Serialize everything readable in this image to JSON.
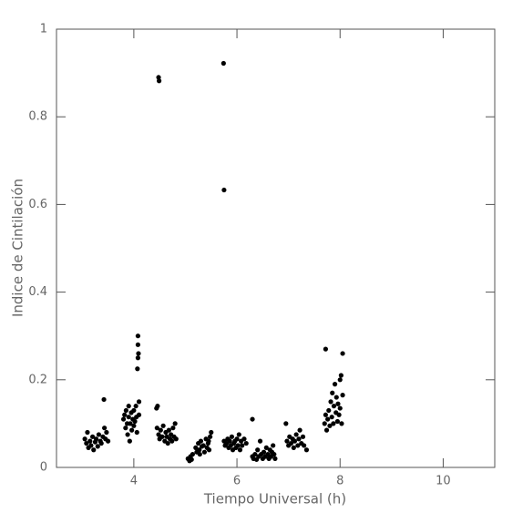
{
  "chart_data": {
    "type": "scatter",
    "x_label": "Tiempo Universal (h)",
    "y_label": "Indice de Cintilación",
    "color": "#000000",
    "xlim": [
      2.5,
      11
    ],
    "xticks": [
      4,
      6,
      8,
      10
    ],
    "ylim": [
      0,
      1
    ],
    "yticks": [
      0,
      0.2,
      0.4,
      0.6,
      0.8,
      1
    ],
    "x": [
      3.05,
      3.08,
      3.1,
      3.12,
      3.15,
      3.17,
      3.2,
      3.22,
      3.25,
      3.27,
      3.3,
      3.32,
      3.35,
      3.37,
      3.4,
      3.42,
      3.43,
      3.45,
      3.47,
      3.5,
      3.8,
      3.82,
      3.84,
      3.85,
      3.87,
      3.88,
      3.9,
      3.9,
      3.92,
      3.93,
      3.95,
      3.96,
      3.98,
      4.0,
      4.0,
      4.02,
      4.04,
      4.05,
      4.06,
      4.08,
      4.08,
      4.09,
      4.08,
      4.07,
      4.1,
      4.1,
      4.44,
      4.46,
      4.48,
      4.49,
      4.45,
      4.48,
      4.5,
      4.52,
      4.55,
      4.57,
      4.6,
      4.62,
      4.64,
      4.66,
      4.68,
      4.7,
      4.72,
      4.74,
      4.76,
      4.78,
      4.8,
      4.82,
      5.05,
      5.08,
      5.1,
      5.12,
      5.14,
      5.2,
      5.22,
      5.25,
      5.27,
      5.3,
      5.32,
      5.35,
      5.37,
      5.4,
      5.42,
      5.44,
      5.46,
      5.48,
      5.5,
      5.45,
      5.28,
      5.74,
      5.75,
      5.75,
      5.77,
      5.8,
      5.82,
      5.84,
      5.86,
      5.88,
      5.9,
      5.92,
      5.94,
      5.96,
      5.98,
      6.0,
      6.02,
      6.04,
      6.06,
      6.08,
      6.1,
      6.14,
      6.18,
      6.3,
      6.3,
      6.32,
      6.35,
      6.38,
      6.4,
      6.42,
      6.45,
      6.47,
      6.5,
      6.52,
      6.55,
      6.57,
      6.6,
      6.62,
      6.64,
      6.66,
      6.68,
      6.7,
      6.72,
      6.74,
      6.95,
      6.97,
      7.0,
      7.02,
      7.05,
      7.08,
      7.1,
      7.12,
      7.15,
      7.18,
      7.2,
      7.22,
      7.25,
      7.28,
      7.3,
      7.35,
      7.7,
      7.72,
      7.72,
      7.74,
      7.76,
      7.78,
      7.8,
      7.82,
      7.84,
      7.85,
      7.87,
      7.88,
      7.9,
      7.92,
      7.93,
      7.95,
      7.96,
      7.98,
      8.0,
      8.0,
      8.02,
      8.03,
      8.05,
      8.05
    ],
    "y": [
      0.065,
      0.055,
      0.08,
      0.045,
      0.06,
      0.05,
      0.07,
      0.04,
      0.058,
      0.065,
      0.048,
      0.075,
      0.06,
      0.055,
      0.07,
      0.155,
      0.09,
      0.065,
      0.08,
      0.06,
      0.11,
      0.12,
      0.09,
      0.13,
      0.1,
      0.075,
      0.115,
      0.14,
      0.06,
      0.1,
      0.125,
      0.085,
      0.11,
      0.095,
      0.13,
      0.105,
      0.14,
      0.115,
      0.08,
      0.3,
      0.28,
      0.26,
      0.25,
      0.225,
      0.15,
      0.12,
      0.135,
      0.14,
      0.89,
      0.882,
      0.09,
      0.075,
      0.065,
      0.085,
      0.07,
      0.095,
      0.06,
      0.08,
      0.07,
      0.055,
      0.085,
      0.065,
      0.075,
      0.06,
      0.09,
      0.07,
      0.1,
      0.065,
      0.02,
      0.015,
      0.025,
      0.018,
      0.03,
      0.045,
      0.035,
      0.055,
      0.04,
      0.06,
      0.048,
      0.05,
      0.035,
      0.065,
      0.045,
      0.055,
      0.04,
      0.07,
      0.08,
      0.06,
      0.03,
      0.922,
      0.633,
      0.06,
      0.05,
      0.055,
      0.065,
      0.045,
      0.06,
      0.05,
      0.07,
      0.04,
      0.055,
      0.06,
      0.045,
      0.065,
      0.05,
      0.075,
      0.04,
      0.06,
      0.05,
      0.065,
      0.055,
      0.11,
      0.025,
      0.02,
      0.03,
      0.018,
      0.04,
      0.025,
      0.06,
      0.03,
      0.02,
      0.035,
      0.025,
      0.045,
      0.03,
      0.02,
      0.04,
      0.025,
      0.035,
      0.05,
      0.03,
      0.02,
      0.1,
      0.06,
      0.05,
      0.07,
      0.055,
      0.065,
      0.045,
      0.06,
      0.075,
      0.05,
      0.065,
      0.085,
      0.055,
      0.07,
      0.05,
      0.04,
      0.1,
      0.27,
      0.12,
      0.085,
      0.11,
      0.13,
      0.095,
      0.15,
      0.115,
      0.17,
      0.1,
      0.14,
      0.19,
      0.125,
      0.16,
      0.105,
      0.145,
      0.12,
      0.2,
      0.135,
      0.21,
      0.1,
      0.26,
      0.165
    ]
  }
}
